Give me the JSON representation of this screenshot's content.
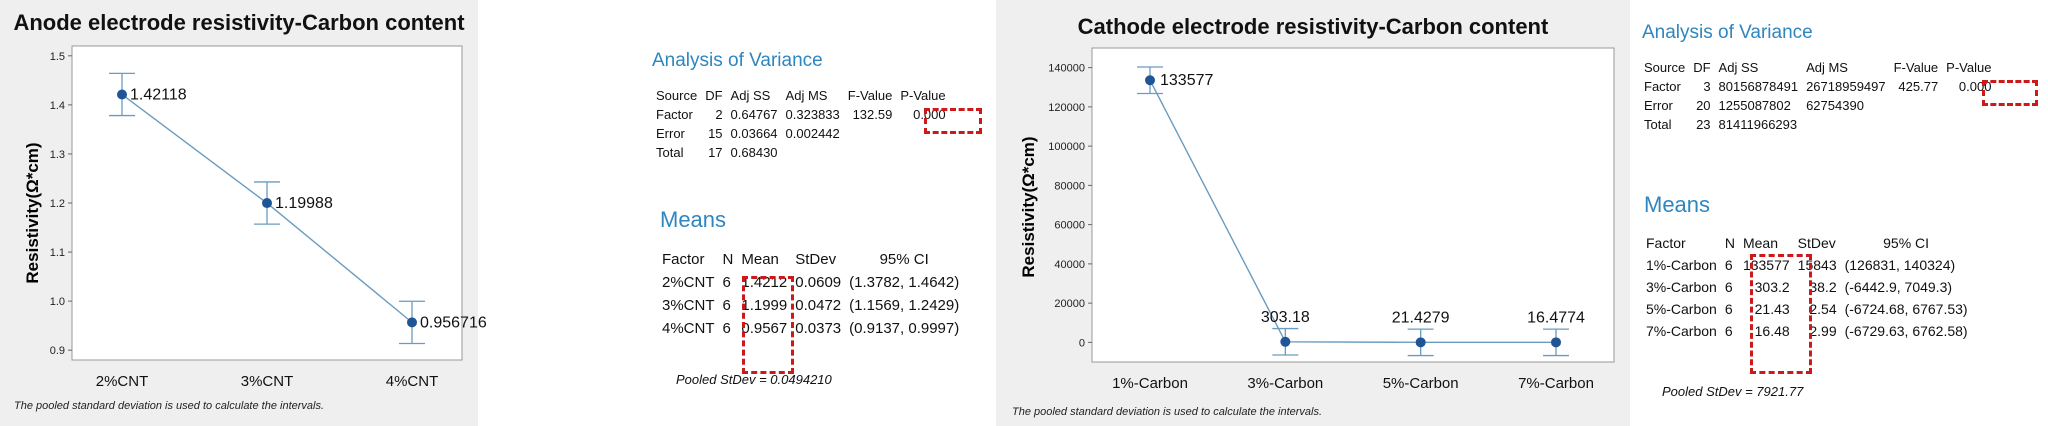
{
  "anode": {
    "title": "Anode electrode resistivity-Carbon content",
    "ylabel": "Resistivity(Ω*cm)",
    "footnote": "The pooled standard deviation is used to calculate the intervals.",
    "yticks": [
      "0.9",
      "1.0",
      "1.1",
      "1.2",
      "1.3",
      "1.4",
      "1.5"
    ],
    "point_labels": [
      "1.42118",
      "1.19988",
      "0.956716"
    ],
    "anova": {
      "heading": "Analysis of Variance",
      "header": [
        "Source",
        "DF",
        "Adj SS",
        "Adj MS",
        "F-Value",
        "P-Value"
      ],
      "rows": [
        [
          "Factor",
          "2",
          "0.64767",
          "0.323833",
          "132.59",
          "0.000"
        ],
        [
          "Error",
          "15",
          "0.03664",
          "0.002442",
          "",
          ""
        ],
        [
          "Total",
          "17",
          "0.68430",
          "",
          "",
          ""
        ]
      ]
    },
    "means": {
      "heading": "Means",
      "header": [
        "Factor",
        "N",
        "Mean",
        "StDev",
        "95% CI"
      ],
      "rows": [
        [
          "2%CNT",
          "6",
          "1.4212",
          "0.0609",
          "(1.3782, 1.4642)"
        ],
        [
          "3%CNT",
          "6",
          "1.1999",
          "0.0472",
          "(1.1569, 1.2429)"
        ],
        [
          "4%CNT",
          "6",
          "0.9567",
          "0.0373",
          "(0.9137, 0.9997)"
        ]
      ],
      "pooled": "Pooled StDev = 0.0494210"
    }
  },
  "cathode": {
    "title": "Cathode electrode resistivity-Carbon content",
    "ylabel": "Resistivity(Ω*cm)",
    "footnote": "The pooled standard deviation is used to calculate the intervals.",
    "yticks": [
      "0",
      "20000",
      "40000",
      "60000",
      "80000",
      "100000",
      "120000",
      "140000"
    ],
    "point_labels": [
      "133577",
      "303.18",
      "21.4279",
      "16.4774"
    ],
    "anova": {
      "heading": "Analysis of Variance",
      "header": [
        "Source",
        "DF",
        "Adj SS",
        "Adj MS",
        "F-Value",
        "P-Value"
      ],
      "rows": [
        [
          "Factor",
          "3",
          "80156878491",
          "26718959497",
          "425.77",
          "0.000"
        ],
        [
          "Error",
          "20",
          "1255087802",
          "62754390",
          "",
          ""
        ],
        [
          "Total",
          "23",
          "81411966293",
          "",
          "",
          ""
        ]
      ]
    },
    "means": {
      "heading": "Means",
      "header": [
        "Factor",
        "N",
        "Mean",
        "StDev",
        "95% CI"
      ],
      "rows": [
        [
          "1%-Carbon",
          "6",
          "133577",
          "15843",
          "(126831, 140324)"
        ],
        [
          "3%-Carbon",
          "6",
          "303.2",
          "38.2",
          "(-6442.9, 7049.3)"
        ],
        [
          "5%-Carbon",
          "6",
          "21.43",
          "2.54",
          "(-6724.68, 6767.53)"
        ],
        [
          "7%-Carbon",
          "6",
          "16.48",
          "2.99",
          "(-6729.63, 6762.58)"
        ]
      ],
      "pooled": "Pooled StDev = 7921.77"
    }
  },
  "colors": {
    "point": "#1f5596",
    "line": "#6a9cbf",
    "errorbar": "#6a9cbf",
    "heading": "#2e86bf",
    "highlight": "#cc1a1a"
  },
  "chart_data": [
    {
      "type": "line",
      "title": "Anode electrode resistivity-Carbon content",
      "xlabel": "",
      "ylabel": "Resistivity(Ω*cm)",
      "categories": [
        "2%CNT",
        "3%CNT",
        "4%CNT"
      ],
      "values": [
        1.42118,
        1.19988,
        0.956716
      ],
      "ci_low": [
        1.3782,
        1.1569,
        0.9137
      ],
      "ci_high": [
        1.4642,
        1.2429,
        0.9997
      ],
      "ylim": [
        0.88,
        1.52
      ],
      "grid": false
    },
    {
      "type": "line",
      "title": "Cathode electrode resistivity-Carbon content",
      "xlabel": "",
      "ylabel": "Resistivity(Ω*cm)",
      "categories": [
        "1%-Carbon",
        "3%-Carbon",
        "5%-Carbon",
        "7%-Carbon"
      ],
      "values": [
        133577,
        303.18,
        21.4279,
        16.4774
      ],
      "ci_low": [
        126831,
        -6442.9,
        -6724.68,
        -6729.63
      ],
      "ci_high": [
        140324,
        7049.3,
        6767.53,
        6762.58
      ],
      "ylim": [
        -10000,
        150000
      ],
      "grid": false
    }
  ]
}
